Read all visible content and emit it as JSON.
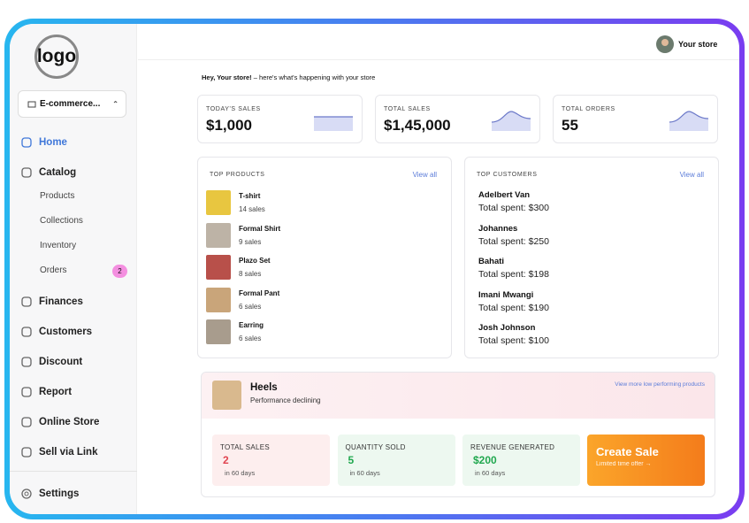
{
  "sidebar": {
    "logo": "logo",
    "store": "E-commerce...",
    "nav": [
      {
        "label": "Home"
      },
      {
        "label": "Catalog",
        "items": [
          {
            "label": "Products"
          },
          {
            "label": "Collections"
          },
          {
            "label": "Inventory"
          },
          {
            "label": "Orders",
            "badge": "2"
          }
        ]
      },
      {
        "label": "Finances"
      },
      {
        "label": "Customers"
      },
      {
        "label": "Discount"
      },
      {
        "label": "Report"
      },
      {
        "label": "Online Store"
      },
      {
        "label": "Sell via Link"
      }
    ],
    "settings": "Settings"
  },
  "header": {
    "user": "Your store"
  },
  "greeting": {
    "name": "Hey, Your store!",
    "text": "– here's what's happening with your store"
  },
  "stats": [
    {
      "label": "TODAY'S SALES",
      "value": "$1,000"
    },
    {
      "label": "TOTAL SALES",
      "value": "$1,45,000"
    },
    {
      "label": "TOTAL ORDERS",
      "value": "55"
    }
  ],
  "top_products": {
    "title": "TOP PRODUCTS",
    "link": "View all",
    "items": [
      {
        "name": "T-shirt",
        "sales": "14 sales"
      },
      {
        "name": "Formal Shirt",
        "sales": "9 sales"
      },
      {
        "name": "Plazo Set",
        "sales": "8 sales"
      },
      {
        "name": "Formal Pant",
        "sales": "6 sales"
      },
      {
        "name": "Earring",
        "sales": "6 sales"
      }
    ]
  },
  "top_customers": {
    "title": "TOP CUSTOMERS",
    "link": "View all",
    "items": [
      {
        "name": "Adelbert Van",
        "spent": "Total spent: $300"
      },
      {
        "name": "Johannes",
        "spent": "Total spent: $250"
      },
      {
        "name": "Bahati",
        "spent": "Total spent: $198"
      },
      {
        "name": "Imani Mwangi",
        "spent": "Total spent: $190"
      },
      {
        "name": "Josh Johnson",
        "spent": "Total spent: $100"
      }
    ]
  },
  "low_performer": {
    "name": "Heels",
    "status": "Performance declining",
    "link": "View more low performing products",
    "metrics": [
      {
        "label": "TOTAL SALES",
        "value": "2",
        "period": "in 60 days"
      },
      {
        "label": "QUANTITY SOLD",
        "value": "5",
        "period": "in 60 days"
      },
      {
        "label": "REVENUE GENERATED",
        "value": "$200",
        "period": "in 60 days"
      }
    ],
    "cta": {
      "title": "Create Sale",
      "subtitle": "Limited time offer →"
    }
  }
}
